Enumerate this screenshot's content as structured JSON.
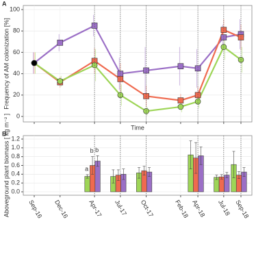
{
  "chart_data": [
    {
      "type": "line",
      "label": "A",
      "xlabel": "Time",
      "ylabel": "Frequency of AM colonization [%]",
      "x": [
        "Sep-16",
        "Dec-16",
        "Apr-17",
        "Jul-17",
        "Oct-17",
        "Feb-18",
        "Apr-18",
        "Jul-18",
        "Sep-18"
      ],
      "ylim": [
        0,
        100
      ],
      "yticks": [
        0,
        20,
        40,
        60,
        80,
        100
      ],
      "grid": true,
      "start_color": "#000000",
      "series": [
        {
          "color": "#9b6fc6",
          "marker": "square",
          "values": [
            50,
            69,
            85,
            40,
            43,
            47,
            45,
            74,
            77
          ],
          "errors": [
            10,
            8,
            10,
            15,
            22,
            18,
            18,
            12,
            14
          ]
        },
        {
          "color": "#ef6a4f",
          "marker": "square",
          "values": [
            50,
            32,
            52,
            35,
            19,
            15,
            20,
            81,
            74
          ],
          "errors": [
            10,
            5,
            12,
            15,
            10,
            6,
            8,
            10,
            12
          ]
        },
        {
          "color": "#9ed557",
          "marker": "circle",
          "values": [
            50,
            33,
            48,
            20,
            5,
            9,
            14,
            65,
            53
          ],
          "errors": [
            10,
            5,
            15,
            10,
            4,
            5,
            6,
            12,
            12
          ]
        }
      ]
    },
    {
      "type": "bar",
      "label": "B",
      "ylabel": "Aboveground plant biomass [ kg m⁻² ]",
      "x": [
        "Sep-16",
        "Dec-16",
        "Apr-17",
        "Jul-17",
        "Oct-17",
        "Feb-18",
        "Apr-18",
        "Jul-18",
        "Sep-18"
      ],
      "ylim": [
        0,
        1.2
      ],
      "yticks": [
        {
          "value": 0,
          "label": "0.0"
        },
        0.2,
        0.4,
        0.6,
        0.8,
        {
          "value": 1,
          "label": "1.0"
        },
        1.2
      ],
      "grid": true,
      "series": [
        {
          "color": "#9ed557",
          "values": [
            null,
            null,
            0.35,
            0.35,
            0.43,
            null,
            0.84,
            0.33,
            0.62
          ],
          "errors": [
            null,
            null,
            0.04,
            0.15,
            0.12,
            null,
            0.32,
            0.05,
            0.3
          ],
          "labels": [
            null,
            null,
            "a",
            null,
            null,
            null,
            null,
            null,
            null
          ]
        },
        {
          "color": "#ef6a4f",
          "values": [
            null,
            null,
            0.6,
            0.38,
            0.48,
            null,
            0.77,
            0.34,
            0.38
          ],
          "errors": [
            null,
            null,
            0.2,
            0.12,
            0.1,
            null,
            0.35,
            0.05,
            0.08
          ],
          "labels": [
            null,
            null,
            "b",
            null,
            null,
            null,
            null,
            null,
            null
          ]
        },
        {
          "color": "#9b6fc6",
          "values": [
            null,
            null,
            0.7,
            0.4,
            0.45,
            null,
            0.82,
            0.38,
            0.45
          ],
          "errors": [
            null,
            null,
            0.12,
            0.12,
            0.1,
            null,
            0.2,
            0.06,
            0.1
          ],
          "labels": [
            null,
            null,
            "b",
            null,
            null,
            null,
            null,
            null,
            null
          ]
        }
      ]
    }
  ]
}
